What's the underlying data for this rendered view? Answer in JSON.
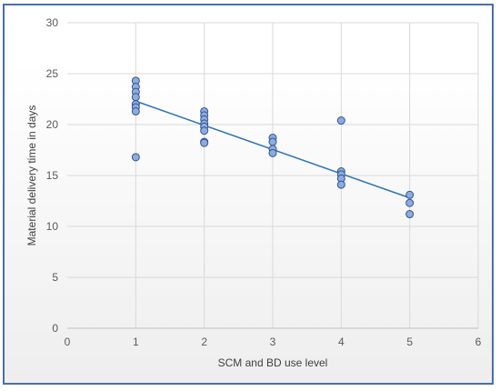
{
  "chart_data": {
    "type": "scatter",
    "title": "",
    "xlabel": "SCM and BD use level",
    "ylabel": "Material delivery time in days",
    "xlim": [
      0,
      6
    ],
    "ylim": [
      0,
      30
    ],
    "x_ticks": [
      0,
      1,
      2,
      3,
      4,
      5,
      6
    ],
    "y_ticks": [
      0,
      5,
      10,
      15,
      20,
      25,
      30
    ],
    "grid": "horizontal",
    "legend": "none",
    "colors": {
      "marker_fill": "#8faadc",
      "marker_stroke": "#2f5597",
      "trendline": "#2e75b6",
      "grid": "#d9d9d9",
      "frame": "#4a6fa8"
    },
    "points": [
      {
        "x": 1,
        "y": 24.3
      },
      {
        "x": 1,
        "y": 23.7
      },
      {
        "x": 1,
        "y": 23.2
      },
      {
        "x": 1,
        "y": 22.7
      },
      {
        "x": 1,
        "y": 22.0
      },
      {
        "x": 1,
        "y": 21.7
      },
      {
        "x": 1,
        "y": 21.3
      },
      {
        "x": 1,
        "y": 16.8
      },
      {
        "x": 2,
        "y": 21.3
      },
      {
        "x": 2,
        "y": 20.9
      },
      {
        "x": 2,
        "y": 20.5
      },
      {
        "x": 2,
        "y": 20.1
      },
      {
        "x": 2,
        "y": 19.8
      },
      {
        "x": 2,
        "y": 19.4
      },
      {
        "x": 2,
        "y": 18.3
      },
      {
        "x": 2,
        "y": 18.2
      },
      {
        "x": 3,
        "y": 18.7
      },
      {
        "x": 3,
        "y": 18.3
      },
      {
        "x": 3,
        "y": 17.6
      },
      {
        "x": 3,
        "y": 17.2
      },
      {
        "x": 4,
        "y": 20.4
      },
      {
        "x": 4,
        "y": 15.4
      },
      {
        "x": 4,
        "y": 15.1
      },
      {
        "x": 4,
        "y": 14.7
      },
      {
        "x": 4,
        "y": 14.1
      },
      {
        "x": 5,
        "y": 13.1
      },
      {
        "x": 5,
        "y": 12.3
      },
      {
        "x": 5,
        "y": 11.2
      }
    ],
    "trendline": {
      "x": [
        1,
        5
      ],
      "y": [
        22.3,
        12.8
      ]
    }
  }
}
